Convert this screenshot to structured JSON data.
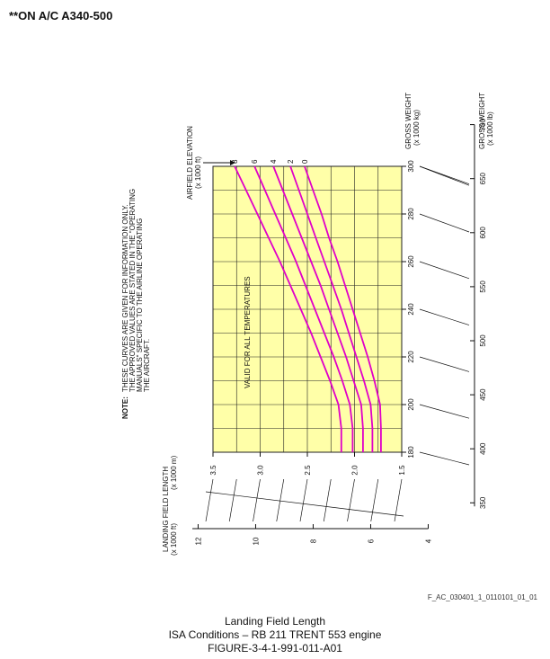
{
  "header": "**ON A/C A340-500",
  "figure_id": "F_AC_030401_1_0110101_01_01",
  "caption": {
    "title": "Landing Field Length",
    "subtitle": "ISA Conditions – RB 211 TRENT 553 engine",
    "figure": "FIGURE-3-4-1-991-011-A01"
  },
  "note": {
    "label": "NOTE:",
    "lines": [
      "THESE CURVES ARE GIVEN FOR INFORMATION ONLY.",
      "THE APPROVED VALUES ARE STATED IN THE \"OPERATING",
      "MANUALS\" SPECIFIC TO THE AIRLINE OPERATING",
      "THE AIRCRAFT."
    ]
  },
  "colors": {
    "plot_fill": "#ffffa8",
    "curve": "#e000c8",
    "grid": "#222222"
  },
  "chart_data": {
    "type": "line",
    "orientation": "rotated 90 degrees counter-clockwise",
    "x_axis": {
      "label": "GROSS WEIGHT",
      "unit": "(x 1000 kg)",
      "range": [
        180,
        300
      ],
      "ticks": [
        "180",
        "200",
        "220",
        "240",
        "260",
        "280",
        "300"
      ]
    },
    "x_axis_secondary": {
      "label": "GROSS WEIGHT",
      "unit": "(x 1000 lb)",
      "ticks": [
        "350",
        "400",
        "450",
        "500",
        "550",
        "600",
        "650",
        "700"
      ]
    },
    "y_axis": {
      "label": "LANDING FIELD LENGTH",
      "unit": "(x 1000 m)",
      "range": [
        1.5,
        3.5
      ],
      "ticks": [
        "1.5",
        "2.0",
        "2.5",
        "3.0",
        "3.5"
      ]
    },
    "y_axis_secondary": {
      "label": "LANDING FIELD LENGTH",
      "unit": "(x 1000 ft)",
      "ticks": [
        "4",
        "6",
        "8",
        "10",
        "12"
      ]
    },
    "series_label": "AIRFIELD ELEVATION",
    "series_unit": "(x 1000 ft)",
    "annotation": "VALID FOR ALL TEMPERATURES",
    "series": [
      {
        "name": "0",
        "x": [
          180,
          190,
          200,
          210,
          220,
          230,
          240,
          250,
          260,
          270,
          280,
          290,
          300
        ],
        "y": [
          1.72,
          1.72,
          1.73,
          1.79,
          1.86,
          1.94,
          2.02,
          2.1,
          2.18,
          2.27,
          2.35,
          2.44,
          2.53
        ]
      },
      {
        "name": "2",
        "x": [
          180,
          190,
          200,
          210,
          220,
          230,
          240,
          250,
          260,
          270,
          280,
          290,
          300
        ],
        "y": [
          1.81,
          1.81,
          1.83,
          1.9,
          1.98,
          2.06,
          2.14,
          2.23,
          2.32,
          2.41,
          2.5,
          2.59,
          2.68
        ]
      },
      {
        "name": "4",
        "x": [
          180,
          190,
          200,
          210,
          220,
          230,
          240,
          250,
          260,
          270,
          280,
          290,
          300
        ],
        "y": [
          1.91,
          1.91,
          1.93,
          2.01,
          2.09,
          2.18,
          2.27,
          2.36,
          2.46,
          2.56,
          2.66,
          2.76,
          2.86
        ]
      },
      {
        "name": "6",
        "x": [
          180,
          190,
          200,
          210,
          220,
          230,
          240,
          250,
          260,
          270,
          280,
          290,
          300
        ],
        "y": [
          2.02,
          2.02,
          2.05,
          2.13,
          2.22,
          2.32,
          2.42,
          2.52,
          2.62,
          2.73,
          2.84,
          2.95,
          3.06
        ]
      },
      {
        "name": "8",
        "x": [
          180,
          190,
          200,
          210,
          220,
          230,
          240,
          250,
          260,
          270,
          280,
          290,
          300
        ],
        "y": [
          2.14,
          2.14,
          2.17,
          2.26,
          2.36,
          2.46,
          2.57,
          2.68,
          2.79,
          2.91,
          3.03,
          3.15,
          3.27
        ]
      }
    ]
  }
}
